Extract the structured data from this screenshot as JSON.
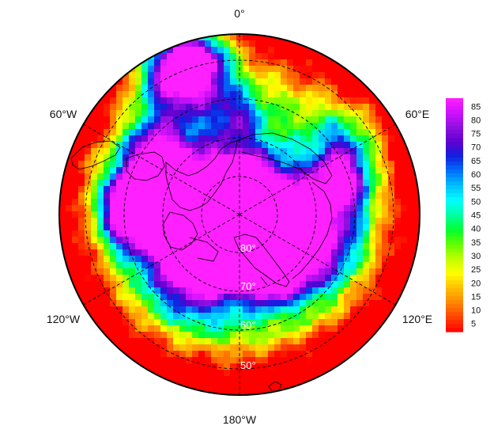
{
  "longitude_labels": {
    "top": "0°",
    "upper_left": "60°W",
    "upper_right": "60°E",
    "lower_left": "120°W",
    "lower_right": "120°E",
    "bottom": "180°W"
  },
  "latitude_labels": [
    "80°",
    "70°",
    "60°",
    "50°"
  ],
  "colorbar": {
    "ticks": [
      "85",
      "80",
      "75",
      "70",
      "65",
      "60",
      "55",
      "50",
      "45",
      "40",
      "35",
      "30",
      "25",
      "20",
      "15",
      "10",
      "5"
    ],
    "range": [
      2,
      88
    ],
    "palette": [
      "#ff0000",
      "#ff4400",
      "#ff8800",
      "#ffc000",
      "#ffff00",
      "#c0ff00",
      "#60ff00",
      "#00ff30",
      "#00ffa0",
      "#00ffff",
      "#00c0ff",
      "#0070ff",
      "#1020e0",
      "#6000d0",
      "#9010e0",
      "#d010ff",
      "#ff20ff"
    ]
  },
  "chart_data": {
    "type": "heatmap",
    "projection": "north polar stereographic",
    "meridian_labels": [
      "0°",
      "60°E",
      "120°E",
      "180°W",
      "120°W",
      "60°W"
    ],
    "parallel_labels": [
      "80°",
      "70°",
      "60°",
      "50°"
    ],
    "color_range": [
      2,
      88
    ],
    "colorbar_ticks": [
      85,
      80,
      75,
      70,
      65,
      60,
      55,
      50,
      45,
      40,
      35,
      30,
      25,
      20,
      15,
      10,
      5
    ],
    "grid": "dashed graticule",
    "legend_placement": "right"
  }
}
